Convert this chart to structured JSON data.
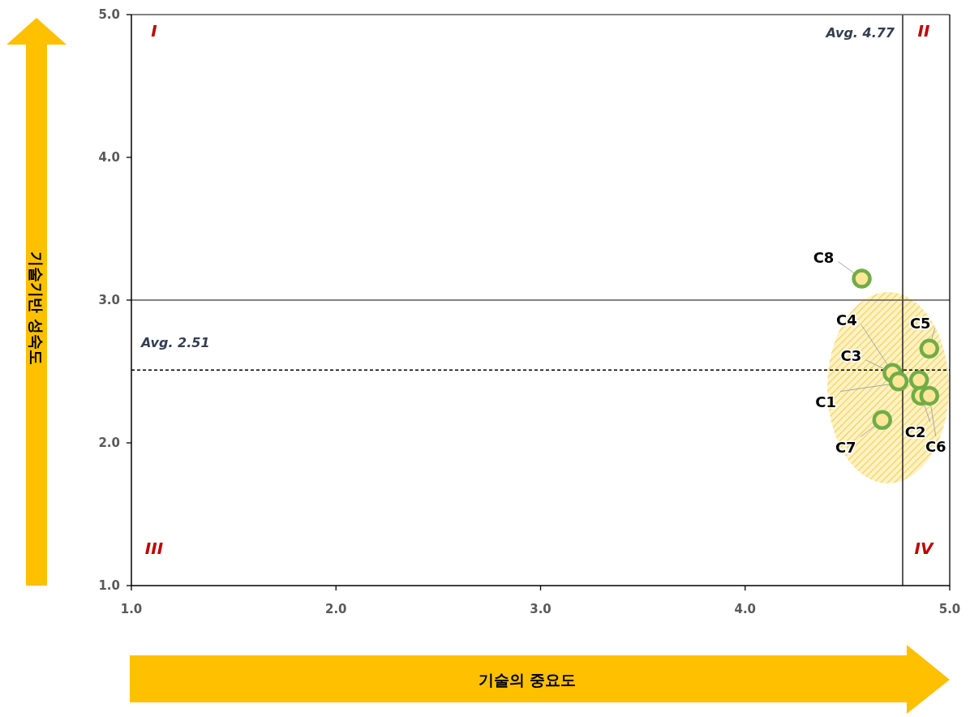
{
  "chart_data": {
    "type": "scatter",
    "xlabel": "기술의 중요도",
    "ylabel": "기술기반 성숙도",
    "x": [
      4.85,
      4.86,
      4.72,
      4.75,
      4.9,
      4.9,
      4.67,
      4.57
    ],
    "values": [
      2.44,
      2.33,
      2.49,
      2.43,
      2.66,
      2.33,
      2.16,
      3.15
    ],
    "color": "#70ad47",
    "marker": "circle",
    "xlim": [
      1,
      5
    ],
    "ylim": [
      1,
      5
    ],
    "xticks": [
      {
        "value": 1,
        "label": "1.0"
      },
      {
        "value": 2,
        "label": "2.0"
      },
      {
        "value": 3,
        "label": "3.0"
      },
      {
        "value": 4,
        "label": "4.0"
      },
      {
        "value": 5,
        "label": "5.0"
      }
    ],
    "yticks": [
      {
        "value": 1,
        "label": "1.0"
      },
      {
        "value": 2,
        "label": "2.0"
      },
      {
        "value": 3,
        "label": "3.0"
      },
      {
        "value": 4,
        "label": "4.0"
      },
      {
        "value": 5,
        "label": "5.0"
      }
    ],
    "ref_lines": [
      {
        "axis": "x",
        "value": 4.77,
        "label": "Avg. 4.77",
        "line_style": "solid",
        "color": "#000000"
      },
      {
        "axis": "y",
        "value": 2.51,
        "label": "Avg. 2.51",
        "line_style": "dashed",
        "color": "#000000"
      },
      {
        "axis": "y",
        "value": 3.0,
        "line_style": "solid",
        "color": "#595959"
      }
    ],
    "annotations": [
      {
        "text": "C1",
        "x": 4.85,
        "y": 2.44
      },
      {
        "text": "C2",
        "x": 4.86,
        "y": 2.33
      },
      {
        "text": "C3",
        "x": 4.72,
        "y": 2.49
      },
      {
        "text": "C4",
        "x": 4.75,
        "y": 2.43
      },
      {
        "text": "C5",
        "x": 4.9,
        "y": 2.66
      },
      {
        "text": "C6",
        "x": 4.9,
        "y": 2.33
      },
      {
        "text": "C7",
        "x": 4.67,
        "y": 2.16
      },
      {
        "text": "C8",
        "x": 4.57,
        "y": 3.15
      },
      "I",
      "II",
      "III",
      "IV"
    ]
  }
}
